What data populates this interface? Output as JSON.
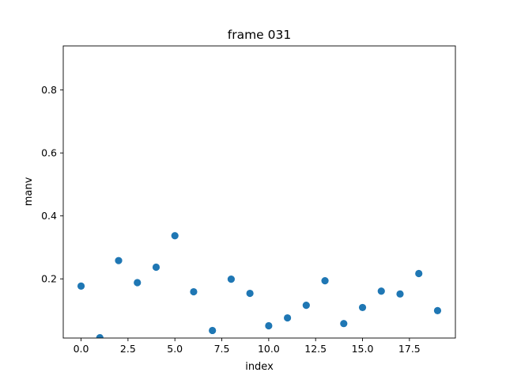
{
  "chart_data": {
    "type": "scatter",
    "title": "frame 031",
    "xlabel": "index",
    "ylabel": "manv",
    "xlim": [
      -0.95,
      19.95
    ],
    "ylim": [
      0.012,
      0.94
    ],
    "xticks": [
      0.0,
      2.5,
      5.0,
      7.5,
      10.0,
      12.5,
      15.0,
      17.5
    ],
    "xtick_labels": [
      "0.0",
      "2.5",
      "5.0",
      "7.5",
      "10.0",
      "12.5",
      "15.0",
      "17.5"
    ],
    "yticks": [
      0.2,
      0.4,
      0.6,
      0.8
    ],
    "ytick_labels": [
      "0.2",
      "0.4",
      "0.6",
      "0.8"
    ],
    "grid": false,
    "marker_color": "#1f77b4",
    "series": [
      {
        "x": [
          0,
          1,
          2,
          3,
          4,
          5,
          6,
          7,
          8,
          9,
          10,
          11,
          12,
          13,
          14,
          15,
          16,
          17,
          18,
          19
        ],
        "y": [
          0.177,
          0.013,
          0.258,
          0.188,
          0.237,
          0.337,
          0.159,
          0.036,
          0.199,
          0.154,
          0.051,
          0.076,
          0.116,
          0.194,
          0.058,
          0.109,
          0.161,
          0.152,
          0.217,
          0.099
        ]
      }
    ]
  }
}
